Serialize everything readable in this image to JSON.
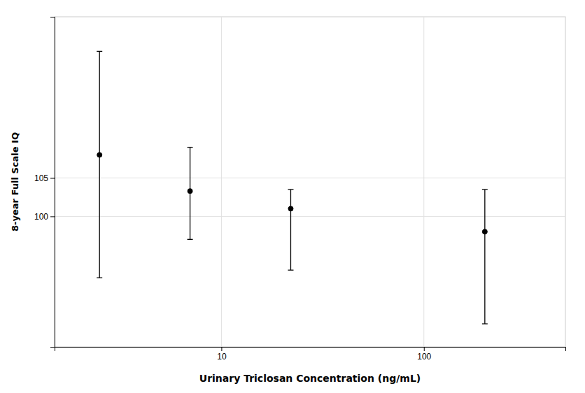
{
  "chart_data": {
    "type": "errorbar",
    "x": [
      2.5,
      7.0,
      22.0,
      200.0
    ],
    "values": [
      108.0,
      103.3,
      101.0,
      98.0
    ],
    "lower": [
      92.0,
      97.0,
      93.0,
      86.0
    ],
    "upper": [
      121.5,
      109.0,
      103.5,
      103.5
    ],
    "xlabel": "Urinary Triclosan Concentration (ng/mL)",
    "ylabel": "8-year Full Scale IQ",
    "xlim": [
      1.5,
      500
    ],
    "ylim": [
      83,
      126
    ],
    "xticks": [
      10,
      100
    ],
    "yticks": [
      100,
      105
    ],
    "log": "x",
    "grid": true,
    "color": "#000000"
  }
}
